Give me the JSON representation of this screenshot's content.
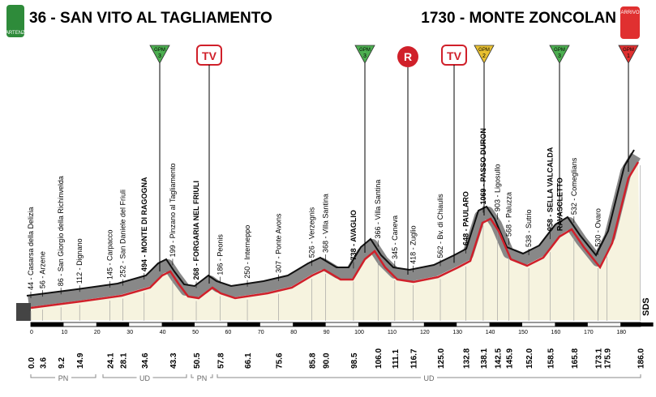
{
  "header": {
    "start": "36 - SAN VITO AL TAGLIAMENTO",
    "start_badge": "PARTENZA",
    "finish": "1730 - MONTE ZONCOLAN",
    "finish_badge": "ARRIVO"
  },
  "markers": [
    {
      "kind": "GPM",
      "text": "3"
    },
    {
      "kind": "TV"
    },
    {
      "kind": "GPM",
      "text": "3"
    },
    {
      "kind": "R"
    },
    {
      "kind": "TV"
    },
    {
      "kind": "GPM",
      "text": "2"
    },
    {
      "kind": "GPM",
      "text": "3"
    },
    {
      "kind": "GPM",
      "text": "1"
    }
  ],
  "waypoints": [
    {
      "km": "0.0",
      "place": "44 - Casarsa della Delizia"
    },
    {
      "km": "3.6",
      "place": "56 - Arzene"
    },
    {
      "km": "9.2",
      "place": "86 - San Giorgio della Richinvelda"
    },
    {
      "km": "14.9",
      "place": "112 - Dignano"
    },
    {
      "km": "24.1",
      "place": "145 - Carpacco"
    },
    {
      "km": "28.1",
      "place": "252 - San Daniele del Friuli"
    },
    {
      "km": "34.6",
      "place": "494 - MONTE DI RAGOGNA"
    },
    {
      "km": "43.3",
      "place": "199 - Pinzano al Tagliamento"
    },
    {
      "km": "50.5",
      "place": "268 - FORGARIA NEL FRIULI"
    },
    {
      "km": "57.8",
      "place": "186 - Peonis"
    },
    {
      "km": "66.1",
      "place": "250 - Interneppo"
    },
    {
      "km": "75.6",
      "place": "307 - Ponte Avons"
    },
    {
      "km": "85.8",
      "place": "526 - Verzegnis"
    },
    {
      "km": "90.0",
      "place": "368 - Villa Santina"
    },
    {
      "km": "98.5",
      "place": "738 - AVAGLIO"
    },
    {
      "km": "106.0",
      "place": "366 - Villa Santina"
    },
    {
      "km": "111.1",
      "place": "345 - Caneva"
    },
    {
      "km": "116.7",
      "place": "418 - Zuglio"
    },
    {
      "km": "125.0",
      "place": "562 - Bv. di Chiaulis"
    },
    {
      "km": "132.8",
      "place": "648 - PAULARO"
    },
    {
      "km": "138.1",
      "place": "1069 - PASSO DURON"
    },
    {
      "km": "142.5",
      "place": "903 - Ligosullo"
    },
    {
      "km": "145.9",
      "place": "568 - Paluzza"
    },
    {
      "km": "152.0",
      "place": "538 - Sutrio"
    },
    {
      "km": "158.5",
      "place": "958 - SELLA VALCALDA",
      "place2": "RAVASCLETTO"
    },
    {
      "km": "165.8",
      "place": "532 - Comeglians"
    },
    {
      "km": "173.1",
      "place": "530 - Ovaro"
    },
    {
      "km": "175.9"
    },
    {
      "km": "186.0"
    }
  ],
  "scale_ticks": [
    0,
    10,
    20,
    30,
    40,
    50,
    60,
    70,
    80,
    90,
    100,
    110,
    120,
    130,
    140,
    150,
    160,
    170,
    180
  ],
  "regions": [
    "PN",
    "UD",
    "PN",
    "UD"
  ],
  "brand": "SDS"
}
